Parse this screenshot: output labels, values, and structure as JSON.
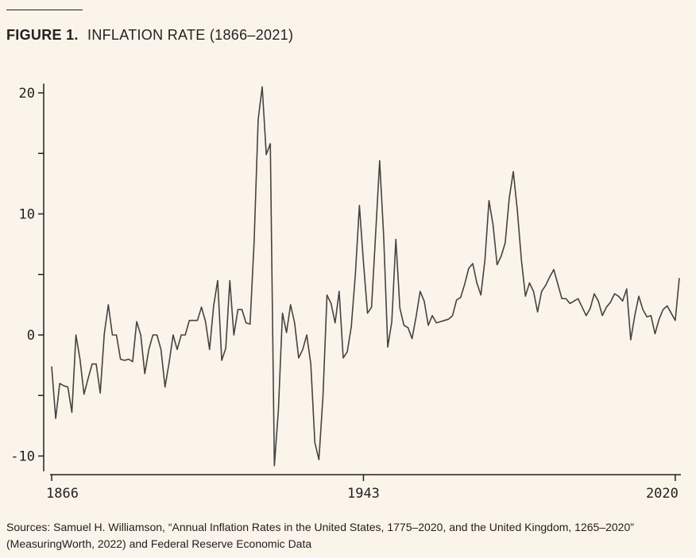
{
  "figure": {
    "label": "FIGURE 1.",
    "title": "INFLATION RATE (1866–2021)"
  },
  "source_text": "Sources: Samuel H. Williamson, “Annual Inflation Rates in the United States, 1775–2020, and the United Kingdom, 1265–2020” (MeasuringWorth, 2022) and Federal Reserve Economic Data",
  "colors": {
    "line": "#444444",
    "axis": "#222222",
    "background": "#faf4ea"
  },
  "chart_data": {
    "type": "line",
    "title": "INFLATION RATE (1866–2021)",
    "xlabel": "",
    "ylabel": "",
    "xlim": [
      1866,
      2021
    ],
    "ylim": [
      -11,
      20.5
    ],
    "x_ticks": [
      1866,
      1943,
      2020
    ],
    "x_tick_labels": [
      "1866",
      "1943",
      "2020"
    ],
    "y_ticks": [
      -10,
      -5,
      0,
      5,
      10,
      15,
      20
    ],
    "y_tick_labels": [
      "-10",
      "",
      "0",
      "",
      "10",
      "",
      "20"
    ],
    "grid": false,
    "x": [
      1866,
      1867,
      1868,
      1869,
      1870,
      1871,
      1872,
      1873,
      1874,
      1875,
      1876,
      1877,
      1878,
      1879,
      1880,
      1881,
      1882,
      1883,
      1884,
      1885,
      1886,
      1887,
      1888,
      1889,
      1890,
      1891,
      1892,
      1893,
      1894,
      1895,
      1896,
      1897,
      1898,
      1899,
      1900,
      1901,
      1902,
      1903,
      1904,
      1905,
      1906,
      1907,
      1908,
      1909,
      1910,
      1911,
      1912,
      1913,
      1914,
      1915,
      1916,
      1917,
      1918,
      1919,
      1920,
      1921,
      1922,
      1923,
      1924,
      1925,
      1926,
      1927,
      1928,
      1929,
      1930,
      1931,
      1932,
      1933,
      1934,
      1935,
      1936,
      1937,
      1938,
      1939,
      1940,
      1941,
      1942,
      1943,
      1944,
      1945,
      1946,
      1947,
      1948,
      1949,
      1950,
      1951,
      1952,
      1953,
      1954,
      1955,
      1956,
      1957,
      1958,
      1959,
      1960,
      1961,
      1962,
      1963,
      1964,
      1965,
      1966,
      1967,
      1968,
      1969,
      1970,
      1971,
      1972,
      1973,
      1974,
      1975,
      1976,
      1977,
      1978,
      1979,
      1980,
      1981,
      1982,
      1983,
      1984,
      1985,
      1986,
      1987,
      1988,
      1989,
      1990,
      1991,
      1992,
      1993,
      1994,
      1995,
      1996,
      1997,
      1998,
      1999,
      2000,
      2001,
      2002,
      2003,
      2004,
      2005,
      2006,
      2007,
      2008,
      2009,
      2010,
      2011,
      2012,
      2013,
      2014,
      2015,
      2016,
      2017,
      2018,
      2019,
      2020,
      2021
    ],
    "series": [
      {
        "values": [
          -2.6,
          -6.9,
          -4.0,
          -4.2,
          -4.3,
          -6.4,
          0.0,
          -2.0,
          -4.9,
          -3.6,
          -2.4,
          -2.4,
          -4.8,
          0.1,
          2.5,
          0.0,
          0.0,
          -2.0,
          -2.1,
          -2.0,
          -2.2,
          1.1,
          0.0,
          -3.2,
          -1.2,
          0.0,
          0.0,
          -1.2,
          -4.3,
          -2.3,
          0.0,
          -1.2,
          0.0,
          0.0,
          1.2,
          1.2,
          1.2,
          2.3,
          1.1,
          -1.2,
          2.4,
          4.5,
          -2.1,
          -1.1,
          4.5,
          0.0,
          2.1,
          2.1,
          1.0,
          0.9,
          7.7,
          17.8,
          20.5,
          14.9,
          15.8,
          -10.8,
          -6.2,
          1.8,
          0.2,
          2.5,
          1.0,
          -1.9,
          -1.2,
          0.0,
          -2.4,
          -8.9,
          -10.3,
          -5.1,
          3.3,
          2.6,
          1.0,
          3.6,
          -1.9,
          -1.4,
          0.7,
          5.0,
          10.7,
          6.0,
          1.8,
          2.3,
          8.3,
          14.4,
          8.1,
          -1.0,
          1.1,
          7.9,
          2.2,
          0.8,
          0.6,
          -0.3,
          1.5,
          3.6,
          2.8,
          0.8,
          1.6,
          1.0,
          1.1,
          1.2,
          1.3,
          1.6,
          2.9,
          3.1,
          4.2,
          5.5,
          5.9,
          4.3,
          3.3,
          6.2,
          11.1,
          9.1,
          5.8,
          6.5,
          7.6,
          11.3,
          13.5,
          10.3,
          6.2,
          3.2,
          4.3,
          3.6,
          1.9,
          3.6,
          4.1,
          4.8,
          5.4,
          4.2,
          3.0,
          3.0,
          2.6,
          2.8,
          3.0,
          2.3,
          1.6,
          2.2,
          3.4,
          2.8,
          1.6,
          2.3,
          2.7,
          3.4,
          3.2,
          2.8,
          3.8,
          -0.4,
          1.6,
          3.2,
          2.1,
          1.5,
          1.6,
          0.1,
          1.3,
          2.1,
          2.4,
          1.8,
          1.2,
          4.7
        ]
      }
    ]
  }
}
